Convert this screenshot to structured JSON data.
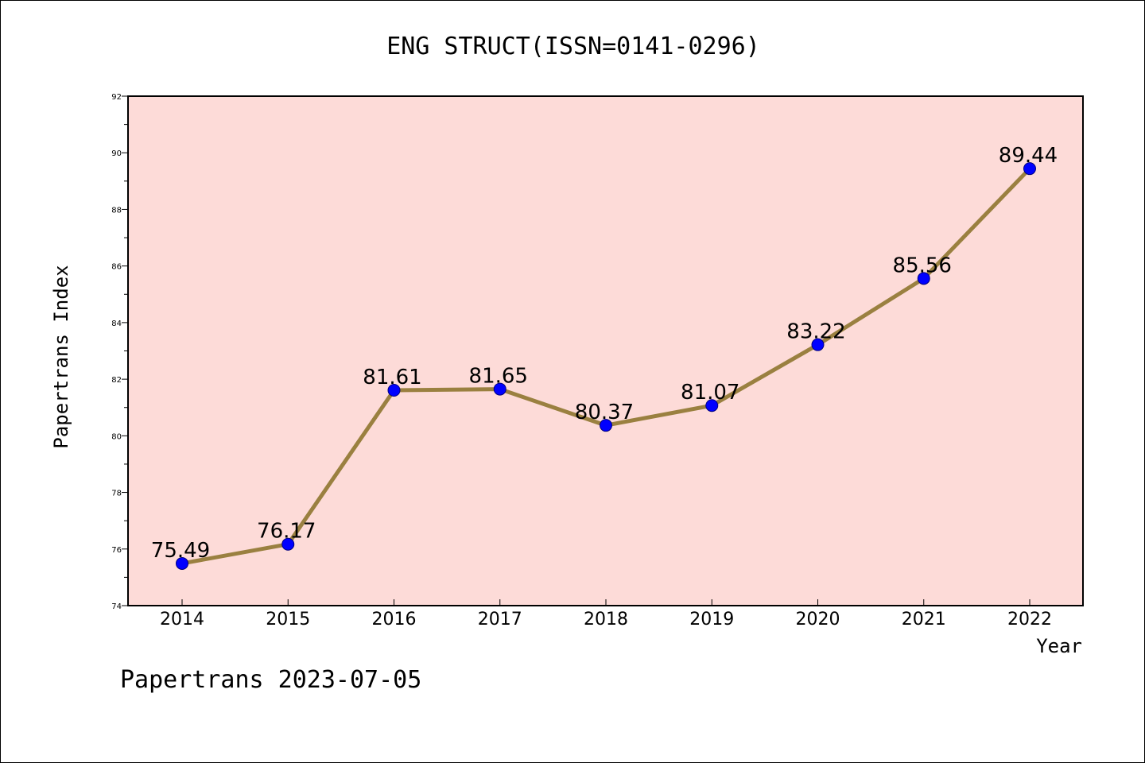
{
  "footer": "Papertrans 2023-07-05",
  "chart_data": {
    "type": "line",
    "title": "ENG STRUCT(ISSN=0141-0296)",
    "xlabel": "Year",
    "ylabel": "Papertrans Index",
    "categories": [
      "2014",
      "2015",
      "2016",
      "2017",
      "2018",
      "2019",
      "2020",
      "2021",
      "2022"
    ],
    "series": [
      {
        "values": [
          75.49,
          76.17,
          81.61,
          81.65,
          80.37,
          81.07,
          83.22,
          85.56,
          89.44
        ],
        "data_labels": [
          "75.49",
          "76.17",
          "81.61",
          "81.65",
          "80.37",
          "81.07",
          "83.22",
          "85.56",
          "89.44"
        ]
      }
    ],
    "ylim": [
      74,
      92
    ],
    "yticks": [
      "74",
      "76",
      "78",
      "80",
      "82",
      "84",
      "86",
      "88",
      "90",
      "92"
    ],
    "grid": false,
    "legend": "none",
    "colors": {
      "plot_background": "#fddbd8",
      "line": "#9a8040",
      "marker": "#0000ff",
      "marker_edge": "#000080"
    }
  }
}
